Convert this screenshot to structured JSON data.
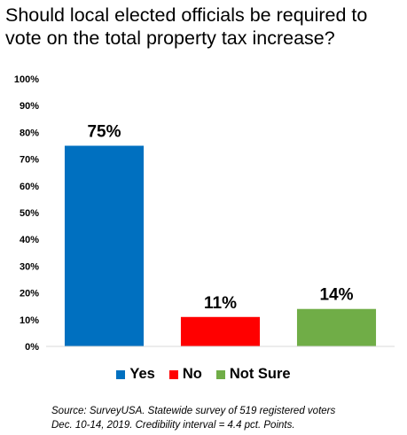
{
  "chart_data": {
    "type": "bar",
    "title": "Should local elected officials be required to vote on the total property tax increase?",
    "categories": [
      "Yes",
      "No",
      "Not Sure"
    ],
    "values": [
      75,
      11,
      14
    ],
    "data_labels": [
      "75%",
      "11%",
      "14%"
    ],
    "colors": [
      "#0070c0",
      "#ff0000",
      "#70ad47"
    ],
    "ylim": [
      0,
      100
    ],
    "yticks": [
      0,
      10,
      20,
      30,
      40,
      50,
      60,
      70,
      80,
      90,
      100
    ],
    "ytick_labels": [
      "0%",
      "10%",
      "20%",
      "30%",
      "40%",
      "50%",
      "60%",
      "70%",
      "80%",
      "90%",
      "100%"
    ],
    "xlabel": "",
    "ylabel": "",
    "grid": false,
    "legend_position": "bottom"
  },
  "source": {
    "line1": "Source: SurveyUSA. Statewide survey of 519 registered voters",
    "line2": "Dec. 10-14, 2019. Credibility interval = 4.4 pct. Points."
  }
}
